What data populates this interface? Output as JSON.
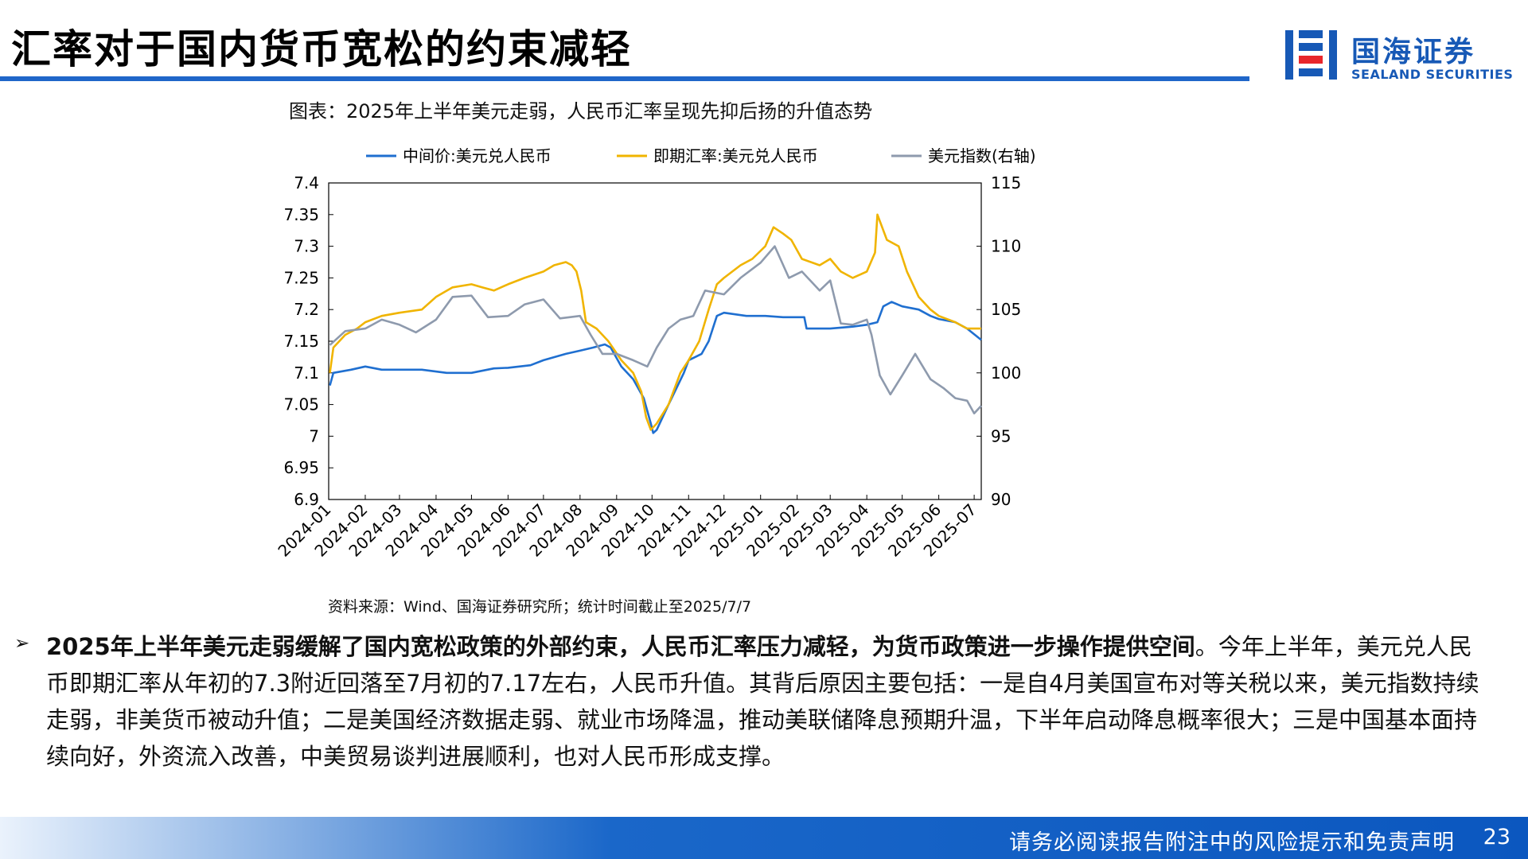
{
  "header": {
    "title": "汇率对于国内货币宽松的约束减轻"
  },
  "logo": {
    "name_cn": "国海证券",
    "name_en": "SEALAND SECURITIES",
    "colors": [
      "#1759b6",
      "#e8262b"
    ]
  },
  "chart_caption": "图表：2025年上半年美元走弱，人民币汇率呈现先抑后扬的升值态势",
  "chart_data": {
    "type": "line",
    "title": "",
    "legend_position": "top",
    "grid": false,
    "x_ticks": [
      "2024-01",
      "2024-02",
      "2024-03",
      "2024-04",
      "2024-05",
      "2024-06",
      "2024-07",
      "2024-08",
      "2024-09",
      "2024-10",
      "2024-11",
      "2024-12",
      "2025-01",
      "2025-02",
      "2025-03",
      "2025-04",
      "2025-05",
      "2025-06",
      "2025-07"
    ],
    "x_range": [
      "2024-01-01",
      "2025-07-07"
    ],
    "y_left": {
      "range": [
        6.9,
        7.4
      ],
      "ticks": [
        "6.9",
        "6.95",
        "7",
        "7.05",
        "7.1",
        "7.15",
        "7.2",
        "7.25",
        "7.3",
        "7.35",
        "7.4"
      ]
    },
    "y_right": {
      "range": [
        90,
        115
      ],
      "ticks": [
        "90",
        "95",
        "100",
        "105",
        "110",
        "115"
      ]
    },
    "series": [
      {
        "name": "中间价:美元兑人民币",
        "axis": "left",
        "color": "#1f6fd0",
        "points": [
          [
            "2024-01-02",
            7.08
          ],
          [
            "2024-01-05",
            7.1
          ],
          [
            "2024-01-20",
            7.105
          ],
          [
            "2024-02-01",
            7.11
          ],
          [
            "2024-02-15",
            7.105
          ],
          [
            "2024-03-01",
            7.105
          ],
          [
            "2024-03-20",
            7.105
          ],
          [
            "2024-04-10",
            7.1
          ],
          [
            "2024-05-01",
            7.1
          ],
          [
            "2024-05-20",
            7.107
          ],
          [
            "2024-06-01",
            7.108
          ],
          [
            "2024-06-20",
            7.112
          ],
          [
            "2024-07-01",
            7.12
          ],
          [
            "2024-07-20",
            7.13
          ],
          [
            "2024-08-01",
            7.135
          ],
          [
            "2024-08-12",
            7.14
          ],
          [
            "2024-08-22",
            7.145
          ],
          [
            "2024-08-27",
            7.14
          ],
          [
            "2024-09-05",
            7.11
          ],
          [
            "2024-09-15",
            7.09
          ],
          [
            "2024-09-24",
            7.06
          ],
          [
            "2024-09-30",
            7.02
          ],
          [
            "2024-10-02",
            7.005
          ],
          [
            "2024-10-05",
            7.01
          ],
          [
            "2024-10-15",
            7.05
          ],
          [
            "2024-10-28",
            7.1
          ],
          [
            "2024-11-01",
            7.12
          ],
          [
            "2024-11-12",
            7.13
          ],
          [
            "2024-11-18",
            7.15
          ],
          [
            "2024-11-25",
            7.19
          ],
          [
            "2024-12-01",
            7.195
          ],
          [
            "2024-12-20",
            7.19
          ],
          [
            "2025-01-05",
            7.19
          ],
          [
            "2025-01-20",
            7.188
          ],
          [
            "2025-02-07",
            7.188
          ],
          [
            "2025-02-09",
            7.17
          ],
          [
            "2025-03-01",
            7.17
          ],
          [
            "2025-03-20",
            7.173
          ],
          [
            "2025-04-01",
            7.176
          ],
          [
            "2025-04-10",
            7.18
          ],
          [
            "2025-04-15",
            7.205
          ],
          [
            "2025-04-22",
            7.212
          ],
          [
            "2025-05-01",
            7.205
          ],
          [
            "2025-05-15",
            7.2
          ],
          [
            "2025-05-25",
            7.19
          ],
          [
            "2025-06-01",
            7.185
          ],
          [
            "2025-06-15",
            7.18
          ],
          [
            "2025-06-25",
            7.17
          ],
          [
            "2025-07-07",
            7.152
          ]
        ]
      },
      {
        "name": "即期汇率:美元兑人民币",
        "axis": "left",
        "color": "#f0b400",
        "points": [
          [
            "2024-01-02",
            7.1
          ],
          [
            "2024-01-05",
            7.14
          ],
          [
            "2024-01-15",
            7.16
          ],
          [
            "2024-01-25",
            7.17
          ],
          [
            "2024-02-01",
            7.18
          ],
          [
            "2024-02-15",
            7.19
          ],
          [
            "2024-03-01",
            7.195
          ],
          [
            "2024-03-20",
            7.2
          ],
          [
            "2024-04-01",
            7.22
          ],
          [
            "2024-04-15",
            7.235
          ],
          [
            "2024-05-01",
            7.24
          ],
          [
            "2024-05-10",
            7.235
          ],
          [
            "2024-05-20",
            7.23
          ],
          [
            "2024-06-01",
            7.24
          ],
          [
            "2024-06-15",
            7.25
          ],
          [
            "2024-07-01",
            7.26
          ],
          [
            "2024-07-10",
            7.27
          ],
          [
            "2024-07-20",
            7.275
          ],
          [
            "2024-07-25",
            7.27
          ],
          [
            "2024-07-29",
            7.26
          ],
          [
            "2024-08-02",
            7.23
          ],
          [
            "2024-08-06",
            7.18
          ],
          [
            "2024-08-15",
            7.17
          ],
          [
            "2024-08-25",
            7.15
          ],
          [
            "2024-09-05",
            7.12
          ],
          [
            "2024-09-15",
            7.1
          ],
          [
            "2024-09-22",
            7.07
          ],
          [
            "2024-09-26",
            7.03
          ],
          [
            "2024-09-30",
            7.01
          ],
          [
            "2024-10-05",
            7.02
          ],
          [
            "2024-10-15",
            7.05
          ],
          [
            "2024-10-25",
            7.1
          ],
          [
            "2024-11-01",
            7.12
          ],
          [
            "2024-11-10",
            7.15
          ],
          [
            "2024-11-18",
            7.2
          ],
          [
            "2024-11-25",
            7.24
          ],
          [
            "2024-12-01",
            7.25
          ],
          [
            "2024-12-15",
            7.27
          ],
          [
            "2024-12-25",
            7.28
          ],
          [
            "2025-01-05",
            7.3
          ],
          [
            "2025-01-12",
            7.33
          ],
          [
            "2025-01-20",
            7.32
          ],
          [
            "2025-01-27",
            7.31
          ],
          [
            "2025-02-05",
            7.28
          ],
          [
            "2025-02-20",
            7.27
          ],
          [
            "2025-03-01",
            7.28
          ],
          [
            "2025-03-10",
            7.26
          ],
          [
            "2025-03-20",
            7.25
          ],
          [
            "2025-04-01",
            7.26
          ],
          [
            "2025-04-08",
            7.29
          ],
          [
            "2025-04-10",
            7.35
          ],
          [
            "2025-04-18",
            7.31
          ],
          [
            "2025-04-28",
            7.3
          ],
          [
            "2025-05-05",
            7.26
          ],
          [
            "2025-05-15",
            7.22
          ],
          [
            "2025-05-25",
            7.2
          ],
          [
            "2025-06-01",
            7.19
          ],
          [
            "2025-06-15",
            7.18
          ],
          [
            "2025-06-25",
            7.17
          ],
          [
            "2025-07-07",
            7.17
          ]
        ]
      },
      {
        "name": "美元指数(右轴)",
        "axis": "right",
        "color": "#8e9aad",
        "points": [
          [
            "2024-01-02",
            102.2
          ],
          [
            "2024-01-15",
            103.3
          ],
          [
            "2024-02-01",
            103.5
          ],
          [
            "2024-02-15",
            104.2
          ],
          [
            "2024-03-01",
            103.8
          ],
          [
            "2024-03-15",
            103.2
          ],
          [
            "2024-04-01",
            104.2
          ],
          [
            "2024-04-15",
            106.0
          ],
          [
            "2024-05-01",
            106.1
          ],
          [
            "2024-05-15",
            104.4
          ],
          [
            "2024-06-01",
            104.5
          ],
          [
            "2024-06-15",
            105.4
          ],
          [
            "2024-07-01",
            105.8
          ],
          [
            "2024-07-15",
            104.3
          ],
          [
            "2024-08-01",
            104.5
          ],
          [
            "2024-08-10",
            103.0
          ],
          [
            "2024-08-20",
            101.5
          ],
          [
            "2024-09-01",
            101.5
          ],
          [
            "2024-09-15",
            101.0
          ],
          [
            "2024-09-27",
            100.5
          ],
          [
            "2024-10-05",
            102.0
          ],
          [
            "2024-10-15",
            103.5
          ],
          [
            "2024-10-25",
            104.2
          ],
          [
            "2024-11-05",
            104.5
          ],
          [
            "2024-11-15",
            106.5
          ],
          [
            "2024-12-01",
            106.2
          ],
          [
            "2024-12-15",
            107.5
          ],
          [
            "2025-01-01",
            108.7
          ],
          [
            "2025-01-13",
            110.0
          ],
          [
            "2025-01-25",
            107.5
          ],
          [
            "2025-02-05",
            108.0
          ],
          [
            "2025-02-20",
            106.5
          ],
          [
            "2025-03-01",
            107.3
          ],
          [
            "2025-03-10",
            103.9
          ],
          [
            "2025-03-20",
            103.8
          ],
          [
            "2025-04-01",
            104.2
          ],
          [
            "2025-04-05",
            103.0
          ],
          [
            "2025-04-12",
            99.8
          ],
          [
            "2025-04-21",
            98.3
          ],
          [
            "2025-05-01",
            99.8
          ],
          [
            "2025-05-12",
            101.5
          ],
          [
            "2025-05-25",
            99.5
          ],
          [
            "2025-06-05",
            98.8
          ],
          [
            "2025-06-15",
            98.0
          ],
          [
            "2025-06-25",
            97.8
          ],
          [
            "2025-07-01",
            96.8
          ],
          [
            "2025-07-07",
            97.4
          ]
        ]
      }
    ]
  },
  "source": "资料来源：Wind、国海证券研究所；统计时间截止至2025/7/7",
  "analysis": {
    "bullet": "➢",
    "bold": "2025年上半年美元走弱缓解了国内宽松政策的外部约束，人民币汇率压力减轻，为货币政策进一步操作提供空间",
    "text": "。今年上半年，美元兑人民币即期汇率从年初的7.3附近回落至7月初的7.17左右，人民币升值。其背后原因主要包括：一是自4月美国宣布对等关税以来，美元指数持续走弱，非美货币被动升值；二是美国经济数据走弱、就业市场降温，推动美联储降息预期升温，下半年启动降息概率很大；三是中国基本面持续向好，外资流入改善，中美贸易谈判进展顺利，也对人民币形成支撑。"
  },
  "footer": {
    "disclaimer": "请务必阅读报告附注中的风险提示和免责声明",
    "page": "23"
  }
}
